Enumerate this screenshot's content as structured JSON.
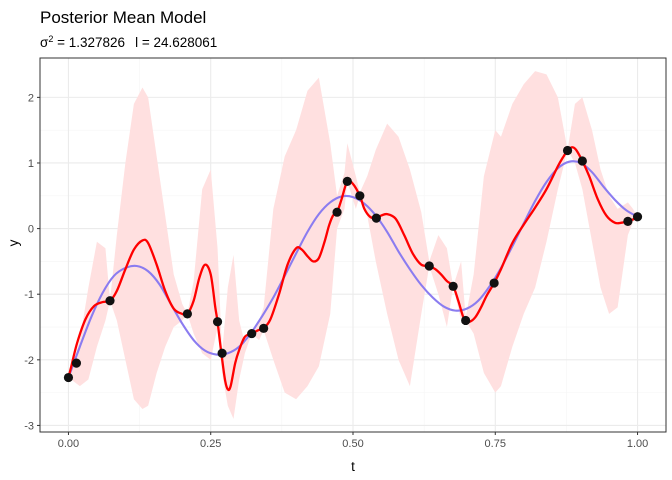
{
  "chart_data": {
    "type": "line",
    "title": "Posterior Mean Model",
    "subtitle": {
      "sigma_symbol": "σ",
      "sigma_exponent": "2",
      "sigma_value": " = 1.327826",
      "l_part": "l = 24.628061"
    },
    "xlabel": "t",
    "ylabel": "y",
    "xlim": [
      -0.05,
      1.05
    ],
    "ylim": [
      -3.1,
      2.6
    ],
    "x_ticks": [
      0,
      0.25,
      0.5,
      0.75,
      1
    ],
    "x_tick_labels": [
      "0.00",
      "0.25",
      "0.50",
      "0.75",
      "1.00"
    ],
    "y_ticks": [
      -3,
      -2,
      -1,
      0,
      1,
      2
    ],
    "y_tick_labels": [
      "-3",
      "-2",
      "-1",
      "0",
      "1",
      "2"
    ],
    "grid": true,
    "theme": "bw",
    "legend": "none",
    "colors": {
      "red_line": "#ff0000",
      "smooth_line": "#8b7cf0",
      "band_fill": "#ffe0e0",
      "points": "#111111",
      "panel_border": "#333333",
      "grid_major": "#ebebeb",
      "grid_minor": "#f5f5f5"
    },
    "band": {
      "x": [
        0.0,
        0.02,
        0.035,
        0.05,
        0.065,
        0.073,
        0.085,
        0.1,
        0.115,
        0.13,
        0.14,
        0.155,
        0.17,
        0.185,
        0.2,
        0.209,
        0.22,
        0.235,
        0.25,
        0.262,
        0.27,
        0.28,
        0.29,
        0.3,
        0.31,
        0.322,
        0.335,
        0.343,
        0.36,
        0.38,
        0.4,
        0.42,
        0.44,
        0.46,
        0.472,
        0.485,
        0.49,
        0.505,
        0.512,
        0.525,
        0.54,
        0.56,
        0.58,
        0.6,
        0.62,
        0.634,
        0.65,
        0.665,
        0.676,
        0.69,
        0.698,
        0.712,
        0.73,
        0.75,
        0.76,
        0.78,
        0.8,
        0.82,
        0.84,
        0.86,
        0.877,
        0.89,
        0.903,
        0.92,
        0.935,
        0.95,
        0.965,
        0.983,
        0.992,
        1.0
      ],
      "upper": [
        -2.27,
        -1.7,
        -0.9,
        -0.2,
        -0.3,
        -1.1,
        -0.1,
        1.0,
        1.9,
        2.15,
        2.0,
        1.1,
        0.2,
        -0.7,
        -1.15,
        -1.3,
        -0.8,
        0.6,
        0.9,
        -0.3,
        -1.9,
        -0.9,
        -0.4,
        -1.4,
        -1.75,
        -1.6,
        -1.4,
        -1.2,
        0.3,
        1.1,
        1.5,
        2.1,
        2.3,
        1.3,
        0.5,
        0.85,
        1.3,
        0.8,
        0.55,
        0.8,
        1.2,
        1.6,
        1.4,
        0.9,
        0.25,
        -0.5,
        -0.1,
        -0.3,
        -0.88,
        -0.5,
        -1.35,
        -0.7,
        0.8,
        1.5,
        1.4,
        1.9,
        2.2,
        2.4,
        2.35,
        2.0,
        1.2,
        1.9,
        2.0,
        1.5,
        0.9,
        0.5,
        0.3,
        0.4,
        0.3,
        0.18
      ],
      "lower": [
        -2.27,
        -2.4,
        -2.3,
        -1.8,
        -1.4,
        -1.1,
        -1.4,
        -2.0,
        -2.6,
        -2.75,
        -2.7,
        -2.2,
        -1.8,
        -1.5,
        -1.4,
        -1.3,
        -1.6,
        -1.9,
        -2.0,
        -1.5,
        -2.2,
        -2.7,
        -2.9,
        -2.3,
        -1.9,
        -1.6,
        -1.7,
        -1.55,
        -2.0,
        -2.5,
        -2.6,
        -2.4,
        -2.1,
        -1.3,
        0.0,
        0.3,
        0.72,
        0.3,
        0.5,
        0.2,
        -0.5,
        -1.3,
        -2.0,
        -2.4,
        -1.3,
        -0.57,
        -1.0,
        -1.5,
        -0.88,
        -1.4,
        -1.4,
        -1.6,
        -2.2,
        -2.5,
        -2.4,
        -1.8,
        -1.3,
        -0.9,
        -0.2,
        0.6,
        1.2,
        1.0,
        0.6,
        -0.2,
        -0.9,
        -1.3,
        -1.2,
        -0.1,
        0.1,
        0.18
      ]
    },
    "series": [
      {
        "color": "#ff0000",
        "x": [
          0.0,
          0.005,
          0.015,
          0.03,
          0.045,
          0.06,
          0.073,
          0.085,
          0.1,
          0.115,
          0.13,
          0.14,
          0.155,
          0.17,
          0.185,
          0.2,
          0.209,
          0.22,
          0.23,
          0.24,
          0.25,
          0.258,
          0.262,
          0.268,
          0.275,
          0.28,
          0.285,
          0.293,
          0.3,
          0.31,
          0.322,
          0.333,
          0.343,
          0.355,
          0.37,
          0.385,
          0.4,
          0.41,
          0.42,
          0.43,
          0.44,
          0.45,
          0.458,
          0.465,
          0.472,
          0.48,
          0.49,
          0.5,
          0.512,
          0.52,
          0.53,
          0.541,
          0.55,
          0.56,
          0.575,
          0.59,
          0.605,
          0.62,
          0.634,
          0.645,
          0.655,
          0.665,
          0.676,
          0.685,
          0.693,
          0.698,
          0.705,
          0.715,
          0.725,
          0.735,
          0.748,
          0.76,
          0.78,
          0.8,
          0.82,
          0.84,
          0.86,
          0.87,
          0.877,
          0.885,
          0.892,
          0.903,
          0.915,
          0.93,
          0.945,
          0.96,
          0.972,
          0.983,
          0.992,
          1.0
        ],
        "y": [
          -2.27,
          -2.1,
          -1.75,
          -1.38,
          -1.18,
          -1.12,
          -1.1,
          -0.95,
          -0.62,
          -0.32,
          -0.18,
          -0.22,
          -0.55,
          -0.95,
          -1.22,
          -1.3,
          -1.3,
          -1.1,
          -0.75,
          -0.55,
          -0.7,
          -1.2,
          -1.42,
          -1.85,
          -2.3,
          -2.45,
          -2.4,
          -2.05,
          -1.85,
          -1.65,
          -1.6,
          -1.55,
          -1.52,
          -1.38,
          -1.0,
          -0.55,
          -0.3,
          -0.32,
          -0.42,
          -0.5,
          -0.45,
          -0.2,
          0.05,
          0.2,
          0.25,
          0.45,
          0.72,
          0.68,
          0.5,
          0.3,
          0.18,
          0.16,
          0.2,
          0.22,
          0.15,
          -0.1,
          -0.38,
          -0.55,
          -0.57,
          -0.62,
          -0.7,
          -0.8,
          -0.88,
          -1.1,
          -1.33,
          -1.4,
          -1.42,
          -1.35,
          -1.2,
          -1.02,
          -0.83,
          -0.62,
          -0.22,
          0.06,
          0.32,
          0.6,
          0.95,
          1.1,
          1.19,
          1.24,
          1.2,
          1.03,
          0.8,
          0.45,
          0.2,
          0.09,
          0.09,
          0.11,
          0.14,
          0.18
        ]
      },
      {
        "color": "#8b7cf0",
        "x": [
          0.0,
          0.02,
          0.04,
          0.06,
          0.08,
          0.1,
          0.12,
          0.14,
          0.16,
          0.18,
          0.2,
          0.22,
          0.24,
          0.26,
          0.28,
          0.3,
          0.32,
          0.34,
          0.36,
          0.38,
          0.4,
          0.42,
          0.44,
          0.46,
          0.48,
          0.5,
          0.52,
          0.54,
          0.56,
          0.58,
          0.6,
          0.62,
          0.64,
          0.66,
          0.68,
          0.7,
          0.72,
          0.74,
          0.76,
          0.78,
          0.8,
          0.82,
          0.84,
          0.86,
          0.88,
          0.9,
          0.92,
          0.94,
          0.96,
          0.98,
          1.0
        ],
        "y": [
          -2.27,
          -1.8,
          -1.35,
          -0.98,
          -0.72,
          -0.6,
          -0.57,
          -0.65,
          -0.85,
          -1.15,
          -1.45,
          -1.7,
          -1.86,
          -1.92,
          -1.9,
          -1.8,
          -1.6,
          -1.34,
          -1.05,
          -0.72,
          -0.38,
          -0.05,
          0.22,
          0.4,
          0.49,
          0.48,
          0.38,
          0.2,
          -0.05,
          -0.35,
          -0.62,
          -0.86,
          -1.05,
          -1.19,
          -1.25,
          -1.22,
          -1.1,
          -0.88,
          -0.6,
          -0.27,
          0.08,
          0.42,
          0.71,
          0.92,
          1.02,
          1.0,
          0.86,
          0.64,
          0.44,
          0.28,
          0.18
        ]
      }
    ],
    "points": {
      "x": [
        0.0,
        0.014,
        0.073,
        0.209,
        0.262,
        0.27,
        0.322,
        0.343,
        0.472,
        0.49,
        0.512,
        0.541,
        0.634,
        0.676,
        0.698,
        0.748,
        0.877,
        0.903,
        0.983,
        1.0
      ],
      "y": [
        -2.27,
        -2.05,
        -1.1,
        -1.3,
        -1.42,
        -1.9,
        -1.6,
        -1.52,
        0.25,
        0.72,
        0.5,
        0.16,
        -0.57,
        -0.88,
        -1.4,
        -0.83,
        1.19,
        1.03,
        0.11,
        0.18
      ]
    }
  }
}
